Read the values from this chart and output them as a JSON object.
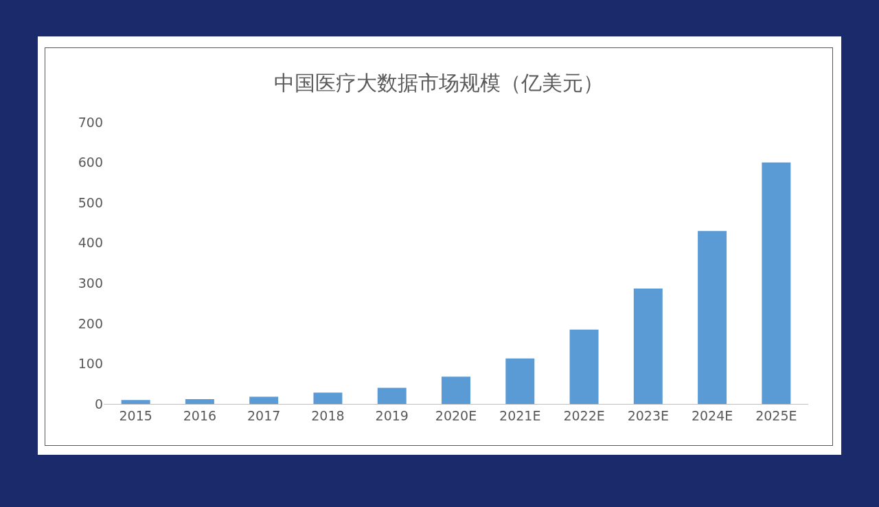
{
  "chart_data": {
    "type": "bar",
    "title": "中国医疗大数据市场规模（亿美元）",
    "categories": [
      "2015",
      "2016",
      "2017",
      "2018",
      "2019",
      "2020E",
      "2021E",
      "2022E",
      "2023E",
      "2024E",
      "2025E"
    ],
    "values": [
      10,
      12,
      18,
      28,
      40,
      68,
      113,
      185,
      287,
      430,
      600
    ],
    "color": "#5b9bd5",
    "ylim": [
      0,
      700
    ],
    "yticks": [
      0,
      100,
      200,
      300,
      400,
      500,
      600,
      700
    ],
    "grid": false
  }
}
